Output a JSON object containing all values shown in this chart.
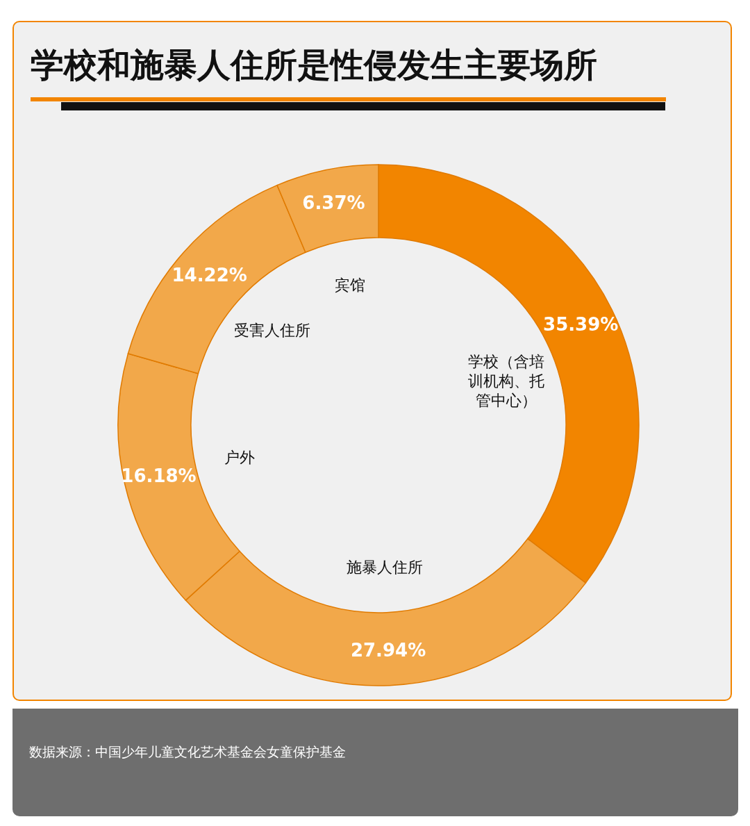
{
  "chart_data": {
    "type": "donut",
    "title": "学校和施暴人住所是性侵发生主要场所",
    "categories": [
      "学校（含培训机构、托管中心）",
      "施暴人住所",
      "户外",
      "受害人住所",
      "宾馆"
    ],
    "values": [
      35.39,
      27.94,
      16.18,
      14.22,
      6.37
    ],
    "colors": [
      "#f28500",
      "#f2a84a",
      "#f2a84a",
      "#f2a84a",
      "#f2a84a"
    ],
    "value_labels": [
      "35.39%",
      "27.94%",
      "16.18%",
      "14.22%",
      "6.37%"
    ],
    "legend": false,
    "annotations": [
      "数据来源：中国少年儿童文化艺术基金会女童保护基金"
    ]
  }
}
